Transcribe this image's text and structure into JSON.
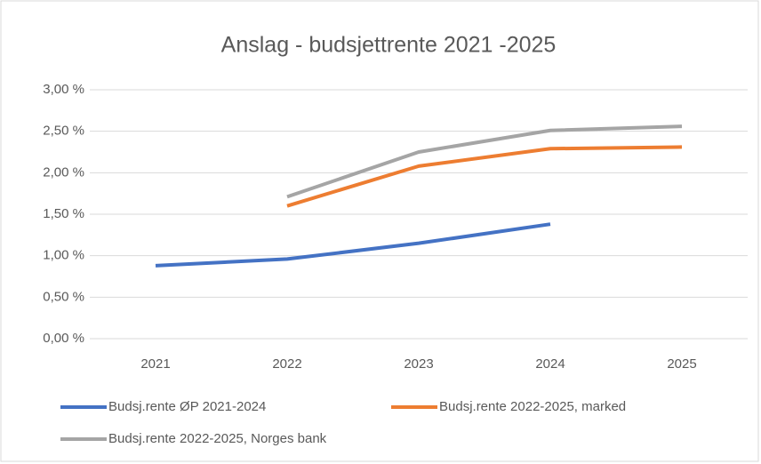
{
  "chart_data": {
    "type": "line",
    "title": "Anslag - budsjettrente 2021 -2025",
    "categories": [
      "2021",
      "2022",
      "2023",
      "2024",
      "2025"
    ],
    "series": [
      {
        "name": "Budsj.rente ØP 2021-2024",
        "color": "#4472c4",
        "values": [
          0.88,
          0.96,
          1.15,
          1.38,
          null
        ]
      },
      {
        "name": "Budsj.rente 2022-2025, marked",
        "color": "#ed7d31",
        "values": [
          null,
          1.6,
          2.08,
          2.29,
          2.31
        ]
      },
      {
        "name": "Budsj.rente 2022-2025, Norges bank",
        "color": "#a5a5a5",
        "values": [
          null,
          1.71,
          2.25,
          2.51,
          2.56
        ]
      }
    ],
    "ylim": [
      0,
      3
    ],
    "yticks": [
      {
        "value": 0,
        "label": "0,00 %"
      },
      {
        "value": 0.5,
        "label": "0,50 %"
      },
      {
        "value": 1,
        "label": "1,00 %"
      },
      {
        "value": 1.5,
        "label": "1,50 %"
      },
      {
        "value": 2,
        "label": "2,00 %"
      },
      {
        "value": 2.5,
        "label": "2,50 %"
      },
      {
        "value": 3,
        "label": "3,00 %"
      }
    ],
    "grid": true,
    "legend": "bottom"
  }
}
